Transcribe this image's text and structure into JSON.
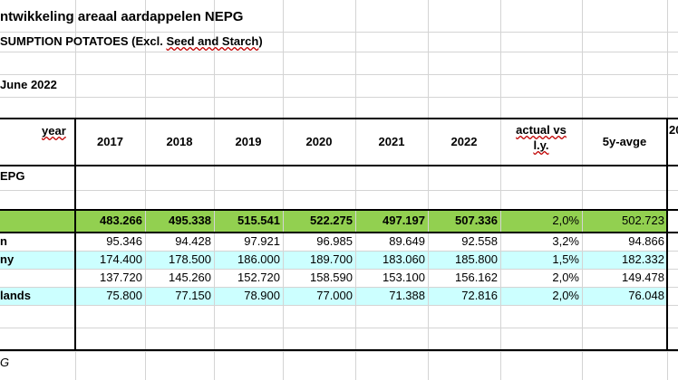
{
  "title": "ntwikkeling areaal aardappelen NEPG",
  "subtitle_prefix": "SUMPTION POTATOES (Excl. ",
  "subtitle_squiggle": "Seed and Starch",
  "subtitle_suffix": ")",
  "date_squiggle": "",
  "date_text": "June 2022",
  "year_label": "year",
  "columns": [
    "2017",
    "2018",
    "2019",
    "2020",
    "2021",
    "2022"
  ],
  "actual_vs_line1": "actual vs",
  "actual_vs_line2": "l.y.",
  "avg_label": "5y-avge",
  "cut_header": "20",
  "nepg_label": "EPG",
  "total": {
    "values": [
      "483.266",
      "495.338",
      "515.541",
      "522.275",
      "497.197",
      "507.336"
    ],
    "actual": "2,0%",
    "avg": "502.723"
  },
  "rows": [
    {
      "label": "n",
      "values": [
        "95.346",
        "94.428",
        "97.921",
        "96.985",
        "89.649",
        "92.558"
      ],
      "actual": "3,2%",
      "avg": "94.866"
    },
    {
      "label": "ny",
      "values": [
        "174.400",
        "178.500",
        "186.000",
        "189.700",
        "183.060",
        "185.800"
      ],
      "actual": "1,5%",
      "avg": "182.332"
    },
    {
      "label": "",
      "values": [
        "137.720",
        "145.260",
        "152.720",
        "158.590",
        "153.100",
        "156.162"
      ],
      "actual": "2,0%",
      "avg": "149.478"
    },
    {
      "label": "lands",
      "values": [
        "75.800",
        "77.150",
        "78.900",
        "77.000",
        "71.388",
        "72.816"
      ],
      "actual": "2,0%",
      "avg": "76.048"
    }
  ],
  "footer": "G",
  "colors": {
    "total_fill": "#92d050",
    "cyan_fill": "#ccffff",
    "grid": "#d4d4d4"
  }
}
